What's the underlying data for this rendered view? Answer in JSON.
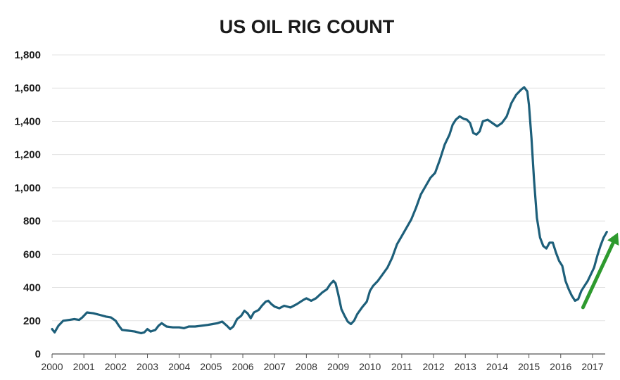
{
  "chart_data": {
    "type": "line",
    "title": "US OIL RIG COUNT",
    "xlabel": "",
    "ylabel": "",
    "xlim": [
      2000,
      2017.4
    ],
    "ylim": [
      0,
      1800
    ],
    "x_ticks": [
      "2000",
      "2001",
      "2002",
      "2003",
      "2004",
      "2005",
      "2006",
      "2007",
      "2008",
      "2009",
      "2010",
      "2011",
      "2012",
      "2013",
      "2014",
      "2015",
      "2016",
      "2017"
    ],
    "y_ticks": [
      {
        "value": 0,
        "label": "0"
      },
      {
        "value": 200,
        "label": "200"
      },
      {
        "value": 400,
        "label": "400"
      },
      {
        "value": 600,
        "label": "600"
      },
      {
        "value": 800,
        "label": "800"
      },
      {
        "value": 1000,
        "label": "1,000"
      },
      {
        "value": 1200,
        "label": "1,200"
      },
      {
        "value": 1400,
        "label": "1,400"
      },
      {
        "value": 1600,
        "label": "1,600"
      },
      {
        "value": 1800,
        "label": "1,800"
      }
    ],
    "grid": true,
    "series": [
      {
        "name": "",
        "color": "#1d5f7a",
        "points": [
          [
            2000.0,
            150
          ],
          [
            2000.08,
            130
          ],
          [
            2000.2,
            170
          ],
          [
            2000.35,
            200
          ],
          [
            2000.55,
            205
          ],
          [
            2000.7,
            210
          ],
          [
            2000.85,
            205
          ],
          [
            2000.95,
            220
          ],
          [
            2001.1,
            250
          ],
          [
            2001.3,
            245
          ],
          [
            2001.5,
            235
          ],
          [
            2001.7,
            225
          ],
          [
            2001.85,
            220
          ],
          [
            2002.0,
            200
          ],
          [
            2002.1,
            170
          ],
          [
            2002.2,
            145
          ],
          [
            2002.4,
            140
          ],
          [
            2002.6,
            135
          ],
          [
            2002.8,
            125
          ],
          [
            2002.9,
            130
          ],
          [
            2003.0,
            150
          ],
          [
            2003.1,
            135
          ],
          [
            2003.25,
            145
          ],
          [
            2003.35,
            170
          ],
          [
            2003.45,
            185
          ],
          [
            2003.6,
            165
          ],
          [
            2003.8,
            160
          ],
          [
            2004.0,
            160
          ],
          [
            2004.15,
            155
          ],
          [
            2004.3,
            165
          ],
          [
            2004.5,
            165
          ],
          [
            2004.7,
            170
          ],
          [
            2004.9,
            175
          ],
          [
            2005.05,
            180
          ],
          [
            2005.2,
            185
          ],
          [
            2005.35,
            195
          ],
          [
            2005.5,
            170
          ],
          [
            2005.6,
            150
          ],
          [
            2005.7,
            165
          ],
          [
            2005.82,
            210
          ],
          [
            2005.95,
            230
          ],
          [
            2006.05,
            260
          ],
          [
            2006.15,
            245
          ],
          [
            2006.25,
            215
          ],
          [
            2006.35,
            250
          ],
          [
            2006.5,
            265
          ],
          [
            2006.6,
            290
          ],
          [
            2006.72,
            315
          ],
          [
            2006.8,
            320
          ],
          [
            2006.9,
            300
          ],
          [
            2007.0,
            285
          ],
          [
            2007.15,
            275
          ],
          [
            2007.3,
            290
          ],
          [
            2007.5,
            280
          ],
          [
            2007.7,
            300
          ],
          [
            2007.9,
            325
          ],
          [
            2008.0,
            335
          ],
          [
            2008.15,
            320
          ],
          [
            2008.3,
            335
          ],
          [
            2008.5,
            370
          ],
          [
            2008.65,
            390
          ],
          [
            2008.75,
            420
          ],
          [
            2008.85,
            440
          ],
          [
            2008.92,
            425
          ],
          [
            2009.0,
            360
          ],
          [
            2009.1,
            270
          ],
          [
            2009.2,
            230
          ],
          [
            2009.3,
            195
          ],
          [
            2009.4,
            180
          ],
          [
            2009.5,
            200
          ],
          [
            2009.6,
            240
          ],
          [
            2009.75,
            280
          ],
          [
            2009.9,
            315
          ],
          [
            2010.0,
            380
          ],
          [
            2010.1,
            410
          ],
          [
            2010.25,
            440
          ],
          [
            2010.4,
            480
          ],
          [
            2010.55,
            520
          ],
          [
            2010.7,
            580
          ],
          [
            2010.85,
            660
          ],
          [
            2011.0,
            710
          ],
          [
            2011.15,
            760
          ],
          [
            2011.3,
            810
          ],
          [
            2011.45,
            880
          ],
          [
            2011.6,
            960
          ],
          [
            2011.75,
            1010
          ],
          [
            2011.9,
            1060
          ],
          [
            2012.05,
            1090
          ],
          [
            2012.2,
            1170
          ],
          [
            2012.35,
            1260
          ],
          [
            2012.5,
            1320
          ],
          [
            2012.6,
            1380
          ],
          [
            2012.7,
            1410
          ],
          [
            2012.82,
            1430
          ],
          [
            2012.95,
            1415
          ],
          [
            2013.05,
            1410
          ],
          [
            2013.15,
            1390
          ],
          [
            2013.25,
            1330
          ],
          [
            2013.35,
            1320
          ],
          [
            2013.45,
            1340
          ],
          [
            2013.55,
            1400
          ],
          [
            2013.7,
            1410
          ],
          [
            2013.85,
            1390
          ],
          [
            2014.0,
            1370
          ],
          [
            2014.15,
            1390
          ],
          [
            2014.3,
            1430
          ],
          [
            2014.45,
            1510
          ],
          [
            2014.6,
            1560
          ],
          [
            2014.75,
            1590
          ],
          [
            2014.85,
            1605
          ],
          [
            2014.95,
            1580
          ],
          [
            2015.0,
            1500
          ],
          [
            2015.08,
            1300
          ],
          [
            2015.16,
            1050
          ],
          [
            2015.25,
            820
          ],
          [
            2015.35,
            700
          ],
          [
            2015.45,
            650
          ],
          [
            2015.55,
            635
          ],
          [
            2015.65,
            670
          ],
          [
            2015.75,
            670
          ],
          [
            2015.85,
            610
          ],
          [
            2015.95,
            560
          ],
          [
            2016.05,
            530
          ],
          [
            2016.15,
            440
          ],
          [
            2016.25,
            390
          ],
          [
            2016.35,
            350
          ],
          [
            2016.45,
            320
          ],
          [
            2016.55,
            330
          ],
          [
            2016.65,
            380
          ],
          [
            2016.75,
            410
          ],
          [
            2016.85,
            440
          ],
          [
            2016.95,
            480
          ],
          [
            2017.05,
            520
          ],
          [
            2017.15,
            590
          ],
          [
            2017.25,
            650
          ],
          [
            2017.35,
            700
          ],
          [
            2017.45,
            735
          ]
        ]
      }
    ],
    "annotation": {
      "type": "arrow",
      "color": "#2e9a2e",
      "from": [
        2016.7,
        280
      ],
      "to": [
        2017.8,
        730
      ]
    }
  }
}
